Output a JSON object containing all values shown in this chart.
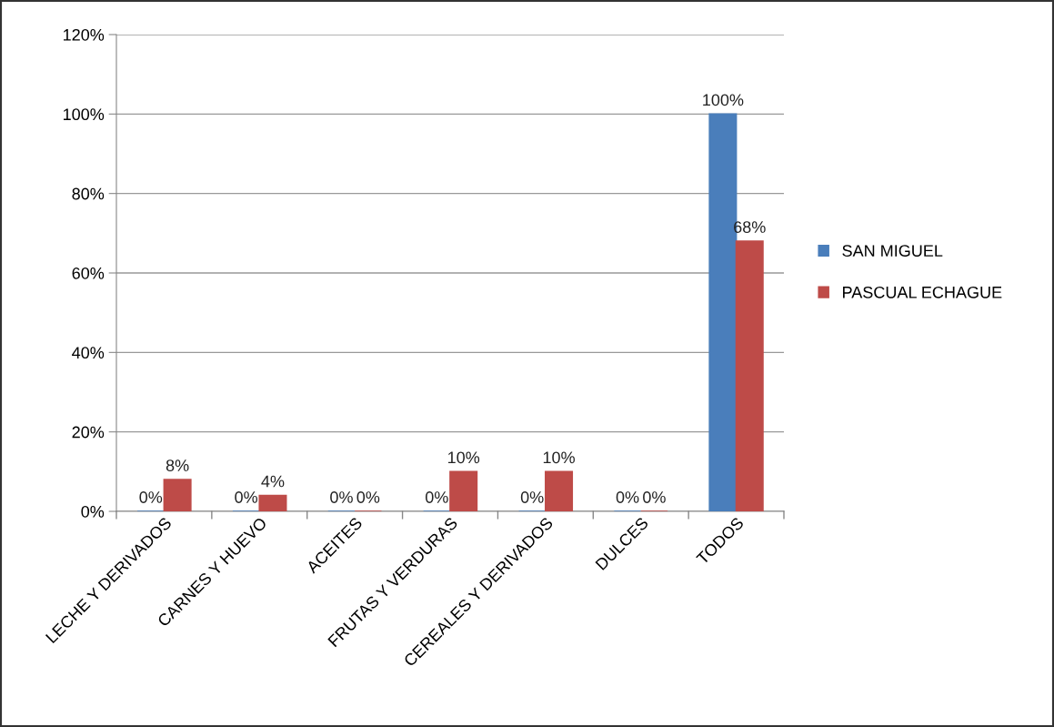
{
  "chart_data": {
    "type": "bar",
    "categories": [
      "LECHE Y DERIVADOS",
      "CARNES Y HUEVO",
      "ACEITES",
      "FRUTAS Y VERDURAS",
      "CEREALES Y DERIVADOS",
      "DULCES",
      "TODOS"
    ],
    "series": [
      {
        "name": "SAN MIGUEL",
        "color": "#4a7ebb",
        "values": [
          0,
          0,
          0,
          0,
          0,
          0,
          100
        ],
        "value_labels": [
          "0%",
          "0%",
          "0%",
          "0%",
          "0%",
          "0%",
          "100%"
        ]
      },
      {
        "name": "PASCUAL ECHAGUE",
        "color": "#be4b48",
        "values": [
          8,
          4,
          0,
          10,
          10,
          0,
          68
        ],
        "value_labels": [
          "8%",
          "4%",
          "0%",
          "10%",
          "10%",
          "0%",
          "68%"
        ]
      }
    ],
    "ylim": [
      0,
      120
    ],
    "yticks": [
      {
        "value": 0,
        "label": "0%"
      },
      {
        "value": 20,
        "label": "20%"
      },
      {
        "value": 40,
        "label": "40%"
      },
      {
        "value": 60,
        "label": "60%"
      },
      {
        "value": 80,
        "label": "80%"
      },
      {
        "value": 100,
        "label": "100%"
      },
      {
        "value": 120,
        "label": "120%"
      }
    ],
    "grid": "y",
    "legend": "right"
  }
}
